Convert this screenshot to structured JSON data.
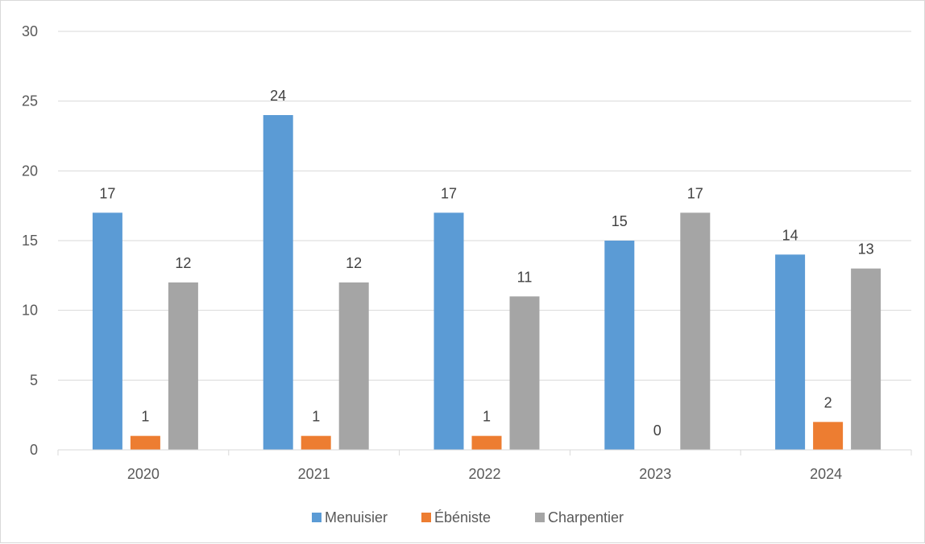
{
  "chart_data": {
    "type": "bar",
    "title": "",
    "xlabel": "",
    "ylabel": "",
    "categories": [
      "2020",
      "2021",
      "2022",
      "2023",
      "2024"
    ],
    "series": [
      {
        "name": "Menuisier",
        "values": [
          17,
          24,
          17,
          15,
          14
        ],
        "color": "#5b9bd5"
      },
      {
        "name": "Ébéniste",
        "values": [
          1,
          1,
          1,
          0,
          2
        ],
        "color": "#ed7d31"
      },
      {
        "name": "Charpentier",
        "values": [
          12,
          12,
          11,
          17,
          13
        ],
        "color": "#a5a5a5"
      }
    ],
    "ylim": [
      0,
      30
    ],
    "yticks": [
      0,
      5,
      10,
      15,
      20,
      25,
      30
    ],
    "grid": true,
    "legend_position": "bottom",
    "data_labels": true
  }
}
